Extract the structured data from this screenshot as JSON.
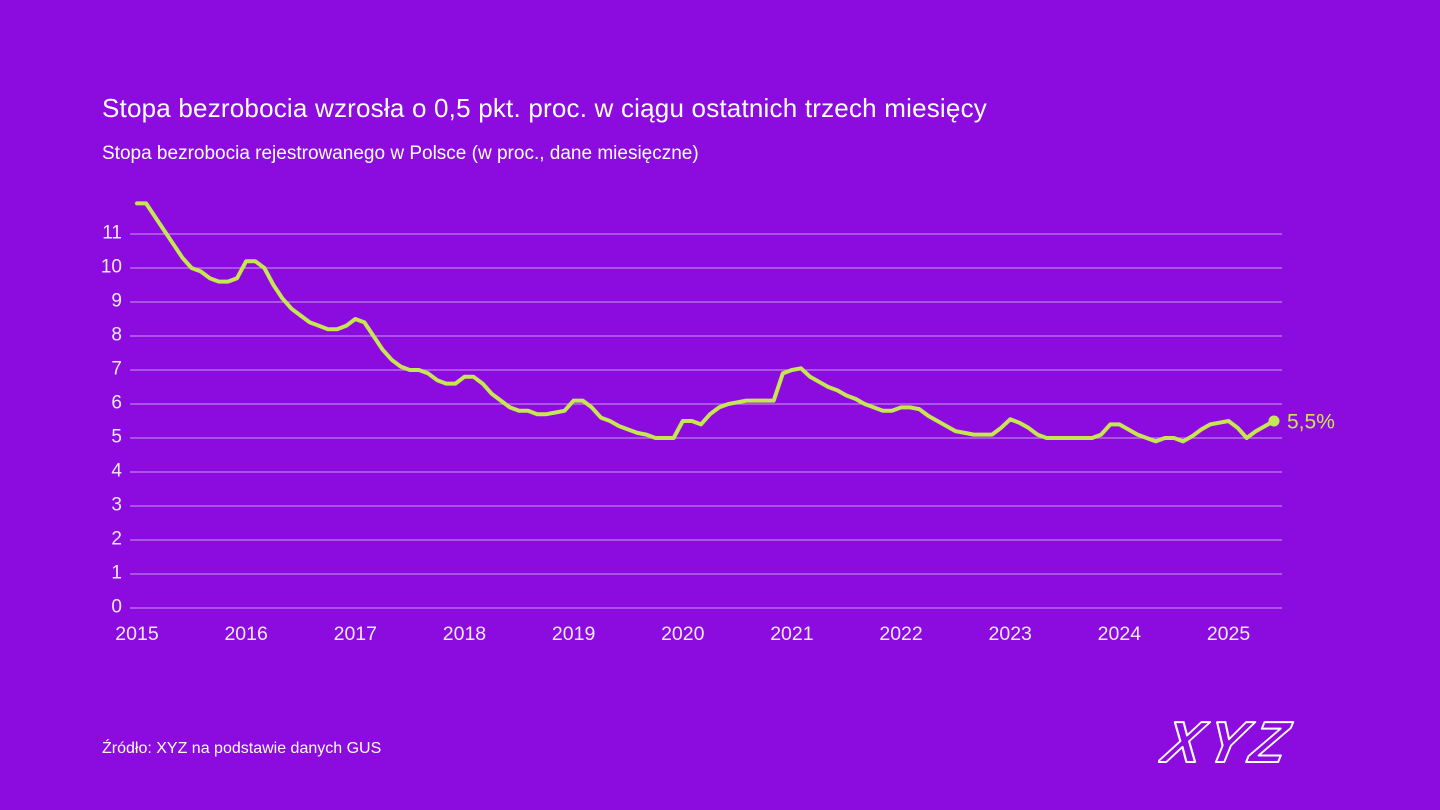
{
  "page": {
    "background_color": "#8C0BDF",
    "title_color": "#FFFFFF",
    "title": "Stopa bezrobocia wzrosła o 0,5 pkt. proc. w ciągu ostatnich trzech miesięcy",
    "subtitle": "Stopa bezrobocia rejestrowanego w Polsce (w proc., dane miesięczne)",
    "source": "Źródło: XYZ na podstawie danych GUS",
    "logo_text": "XYZ"
  },
  "chart_data": {
    "type": "line",
    "title": "Stopa bezrobocia wzrosła o 0,5 pkt. proc. w ciągu ostatnich trzech miesięcy",
    "subtitle": "Stopa bezrobocia rejestrowanego w Polsce (w proc., dane miesięczne)",
    "grid": true,
    "legend": "none",
    "line_color": "#C6E751",
    "grid_color": "#E9DDF8",
    "axis_text_color": "#F2EAFC",
    "ylim": [
      0,
      12
    ],
    "y_tick_labels": [
      "0",
      "1",
      "2",
      "3",
      "4",
      "5",
      "6",
      "7",
      "8",
      "9",
      "10",
      "11"
    ],
    "x_tick_labels": [
      "2015",
      "2016",
      "2017",
      "2018",
      "2019",
      "2020",
      "2021",
      "2022",
      "2023",
      "2024",
      "2025"
    ],
    "end_point_label": "5,5%",
    "last_value": 5.5,
    "series": [
      {
        "name": "Stopa bezrobocia rejestrowanego w Polsce (%)",
        "start_month": "2015-01",
        "end_month": "2025-06",
        "frequency": "monthly",
        "values": [
          11.9,
          11.9,
          11.5,
          11.1,
          10.7,
          10.3,
          10.0,
          9.9,
          9.7,
          9.6,
          9.6,
          9.7,
          10.2,
          10.2,
          10.0,
          9.5,
          9.1,
          8.8,
          8.6,
          8.4,
          8.3,
          8.2,
          8.2,
          8.3,
          8.5,
          8.4,
          8.0,
          7.6,
          7.3,
          7.1,
          7.0,
          7.0,
          6.9,
          6.7,
          6.6,
          6.6,
          6.8,
          6.8,
          6.6,
          6.3,
          6.1,
          5.9,
          5.8,
          5.8,
          5.7,
          5.7,
          5.75,
          5.8,
          6.1,
          6.1,
          5.9,
          5.6,
          5.5,
          5.35,
          5.25,
          5.15,
          5.1,
          5.0,
          5.0,
          5.0,
          5.5,
          5.5,
          5.4,
          5.7,
          5.9,
          6.0,
          6.05,
          6.1,
          6.1,
          6.1,
          6.1,
          6.9,
          7.0,
          7.05,
          6.8,
          6.65,
          6.5,
          6.4,
          6.25,
          6.15,
          6.0,
          5.9,
          5.8,
          5.8,
          5.9,
          5.9,
          5.85,
          5.65,
          5.5,
          5.35,
          5.2,
          5.15,
          5.1,
          5.1,
          5.1,
          5.3,
          5.55,
          5.45,
          5.3,
          5.1,
          5.0,
          5.0,
          5.0,
          5.0,
          5.0,
          5.0,
          5.1,
          5.4,
          5.4,
          5.25,
          5.1,
          5.0,
          4.9,
          5.0,
          5.0,
          4.9,
          5.05,
          5.25,
          5.4,
          5.45,
          5.5,
          5.3,
          5.0,
          5.2,
          5.35,
          5.5
        ]
      }
    ]
  }
}
